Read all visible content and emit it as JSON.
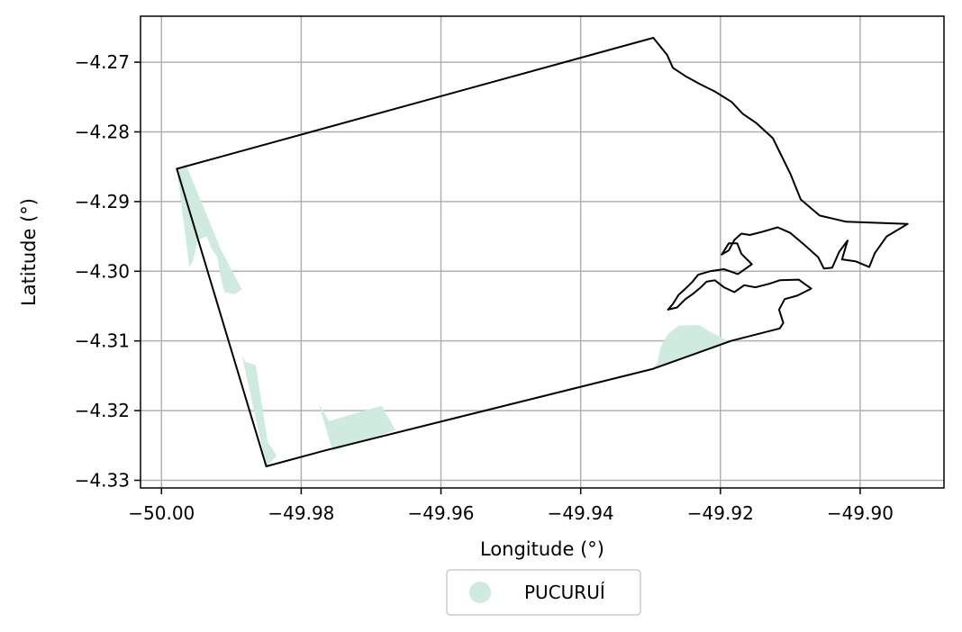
{
  "chart_data": {
    "type": "map",
    "xlabel": "Longitude (°)",
    "ylabel": "Latitude (°)",
    "xlim": [
      -50.003,
      -49.888
    ],
    "ylim": [
      -4.3311,
      -4.2634
    ],
    "x_ticks": [
      -50.0,
      -49.98,
      -49.96,
      -49.94,
      -49.92,
      -49.9
    ],
    "x_tick_labels": [
      "−50.00",
      "−49.98",
      "−49.96",
      "−49.94",
      "−49.92",
      "−49.90"
    ],
    "y_ticks": [
      -4.27,
      -4.28,
      -4.29,
      -4.3,
      -4.31,
      -4.32,
      -4.33
    ],
    "y_tick_labels": [
      "−4.27",
      "−4.28",
      "−4.29",
      "−4.30",
      "−4.31",
      "−4.32",
      "−4.33"
    ],
    "grid": true,
    "legend": {
      "placement": "bottom-center",
      "entries": [
        {
          "label": "PUCURUÍ",
          "color": "#cfeade"
        }
      ]
    },
    "boundary": {
      "color": "#000000",
      "outline": [
        [
          -49.9978,
          -4.2853
        ],
        [
          -49.9296,
          -4.2665
        ],
        [
          -49.9276,
          -4.269
        ],
        [
          -49.9268,
          -4.2708
        ],
        [
          -49.925,
          -4.272
        ],
        [
          -49.923,
          -4.2731
        ],
        [
          -49.9208,
          -4.2742
        ],
        [
          -49.9184,
          -4.2757
        ],
        [
          -49.9168,
          -4.2774
        ],
        [
          -49.9149,
          -4.2787
        ],
        [
          -49.9125,
          -4.2809
        ],
        [
          -49.91,
          -4.286
        ],
        [
          -49.9085,
          -4.2897
        ],
        [
          -49.9058,
          -4.292
        ],
        [
          -49.902,
          -4.2929
        ],
        [
          -49.8932,
          -4.2932
        ],
        [
          -49.8962,
          -4.295
        ],
        [
          -49.8979,
          -4.2974
        ],
        [
          -49.8987,
          -4.2994
        ],
        [
          -49.9006,
          -4.2986
        ],
        [
          -49.9026,
          -4.2983
        ],
        [
          -49.9018,
          -4.2956
        ],
        [
          -49.903,
          -4.2972
        ],
        [
          -49.904,
          -4.2995
        ],
        [
          -49.9052,
          -4.2996
        ],
        [
          -49.906,
          -4.298
        ],
        [
          -49.908,
          -4.2962
        ],
        [
          -49.91,
          -4.2945
        ],
        [
          -49.9118,
          -4.2937
        ],
        [
          -49.9142,
          -4.2944
        ],
        [
          -49.9158,
          -4.2948
        ],
        [
          -49.917,
          -4.2946
        ],
        [
          -49.918,
          -4.2955
        ],
        [
          -49.9188,
          -4.297
        ],
        [
          -49.9198,
          -4.2976
        ],
        [
          -49.9188,
          -4.296
        ],
        [
          -49.9176,
          -4.296
        ],
        [
          -49.917,
          -4.2975
        ],
        [
          -49.9155,
          -4.299
        ],
        [
          -49.9175,
          -4.3004
        ],
        [
          -49.9195,
          -4.2997
        ],
        [
          -49.9215,
          -4.3
        ],
        [
          -49.9232,
          -4.3005
        ],
        [
          -49.924,
          -4.3015
        ],
        [
          -49.925,
          -4.3025
        ],
        [
          -49.926,
          -4.3034
        ],
        [
          -49.9268,
          -4.3047
        ],
        [
          -49.9275,
          -4.3055
        ],
        [
          -49.9262,
          -4.3052
        ],
        [
          -49.925,
          -4.304
        ],
        [
          -49.924,
          -4.3033
        ],
        [
          -49.9228,
          -4.3023
        ],
        [
          -49.922,
          -4.3015
        ],
        [
          -49.9208,
          -4.3013
        ],
        [
          -49.9195,
          -4.3023
        ],
        [
          -49.918,
          -4.303
        ],
        [
          -49.9166,
          -4.302
        ],
        [
          -49.915,
          -4.3023
        ],
        [
          -49.913,
          -4.3018
        ],
        [
          -49.9115,
          -4.3013
        ],
        [
          -49.9088,
          -4.3012
        ],
        [
          -49.907,
          -4.3025
        ],
        [
          -49.909,
          -4.3035
        ],
        [
          -49.9108,
          -4.304
        ],
        [
          -49.9116,
          -4.3055
        ],
        [
          -49.911,
          -4.3074
        ],
        [
          -49.9115,
          -4.3082
        ],
        [
          -49.9185,
          -4.31
        ],
        [
          -49.9296,
          -4.314
        ],
        [
          -49.9765,
          -4.3257
        ],
        [
          -49.985,
          -4.328
        ],
        [
          -49.9978,
          -4.2853
        ]
      ]
    },
    "series": [
      {
        "name": "PUCURUÍ",
        "color": "#cfeade",
        "polygons": [
          [
            [
              -49.9978,
              -4.2853
            ],
            [
              -49.9965,
              -4.2847
            ],
            [
              -49.9938,
              -4.2912
            ],
            [
              -49.9915,
              -4.2969
            ],
            [
              -49.9885,
              -4.3026
            ],
            [
              -49.9895,
              -4.3033
            ],
            [
              -49.991,
              -4.303
            ],
            [
              -49.9915,
              -4.301
            ],
            [
              -49.992,
              -4.298
            ],
            [
              -49.993,
              -4.2965
            ],
            [
              -49.9935,
              -4.295
            ],
            [
              -49.9948,
              -4.2955
            ],
            [
              -49.9955,
              -4.2985
            ],
            [
              -49.996,
              -4.2994
            ]
          ],
          [
            [
              -49.9885,
              -4.3121
            ],
            [
              -49.988,
              -4.313
            ],
            [
              -49.9865,
              -4.3135
            ],
            [
              -49.9855,
              -4.32
            ],
            [
              -49.9848,
              -4.3245
            ],
            [
              -49.9835,
              -4.3265
            ],
            [
              -49.985,
              -4.328
            ]
          ],
          [
            [
              -49.9775,
              -4.319
            ],
            [
              -49.976,
              -4.3215
            ],
            [
              -49.9685,
              -4.3193
            ],
            [
              -49.9665,
              -4.3228
            ],
            [
              -49.9755,
              -4.3258
            ]
          ],
          [
            [
              -49.929,
              -4.313
            ],
            [
              -49.9286,
              -4.311
            ],
            [
              -49.9275,
              -4.309
            ],
            [
              -49.926,
              -4.3078
            ],
            [
              -49.923,
              -4.3077
            ],
            [
              -49.9218,
              -4.3085
            ],
            [
              -49.9185,
              -4.3102
            ],
            [
              -49.9296,
              -4.314
            ]
          ]
        ]
      }
    ]
  }
}
